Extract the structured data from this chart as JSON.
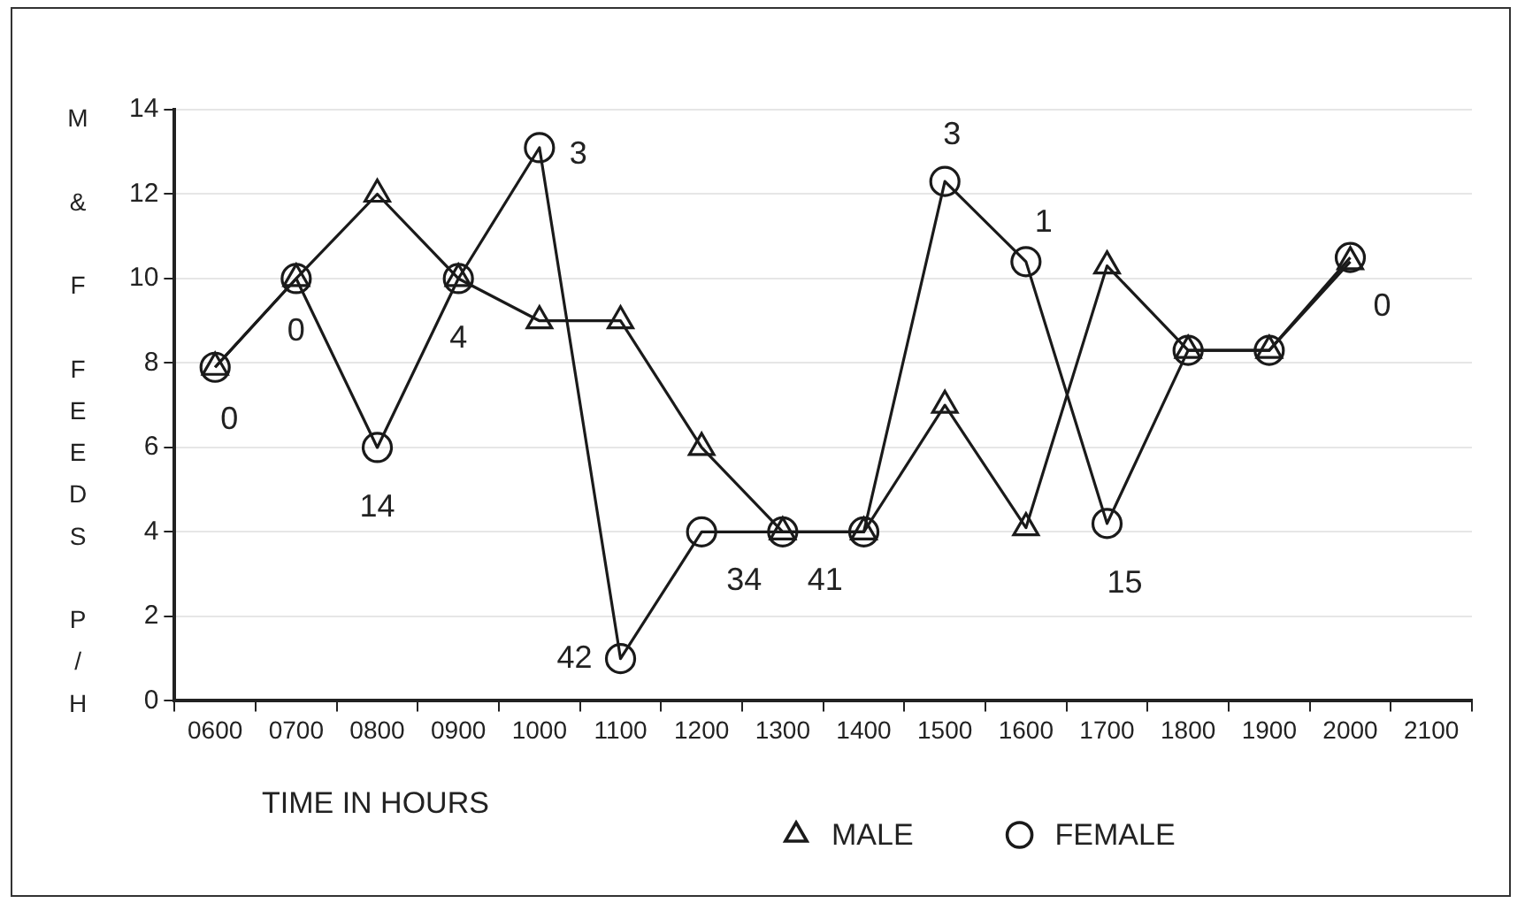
{
  "chart_data": {
    "type": "line",
    "ylabel": "M & F FEEDS P/H",
    "xlabel": "TIME IN HOURS",
    "categories": [
      "0600",
      "0700",
      "0800",
      "0900",
      "1000",
      "1100",
      "1200",
      "1300",
      "1400",
      "1500",
      "1600",
      "1700",
      "1800",
      "1900",
      "2000",
      "2100"
    ],
    "series": [
      {
        "name": "MALE",
        "color": "#1a1a1a",
        "marker": "triangle",
        "values": [
          7.9,
          10,
          12,
          10,
          9,
          9,
          6,
          4,
          4,
          7,
          4.1,
          10.3,
          8.3,
          8.3,
          10.4,
          null
        ]
      },
      {
        "name": "FEMALE",
        "color": "#1a1a1a",
        "marker": "circle",
        "values": [
          7.9,
          10,
          6,
          10,
          13.1,
          1,
          4,
          4,
          4,
          12.3,
          10.4,
          4.2,
          8.3,
          8.3,
          10.5,
          null
        ]
      }
    ],
    "ylim": [
      0,
      14
    ],
    "yticks": [
      0,
      2,
      4,
      6,
      8,
      10,
      12,
      14
    ],
    "grid": "y",
    "legend": "bottom right",
    "line_style": "solid",
    "annotations": [
      {
        "text": "0",
        "x": "0600",
        "y": 7.9
      },
      {
        "text": "0",
        "x": "0700",
        "y": 10
      },
      {
        "text": "14",
        "x": "0800",
        "y": 6
      },
      {
        "text": "4",
        "x": "0900",
        "y": 10
      },
      {
        "text": "3",
        "x": "1000",
        "y": 13.1
      },
      {
        "text": "42",
        "x": "1100",
        "y": 1
      },
      {
        "text": "34",
        "x": "1200",
        "y": 4
      },
      {
        "text": "41",
        "x": "1300",
        "y": 4
      },
      {
        "text": "3",
        "x": "1500",
        "y": 12.3
      },
      {
        "text": "1",
        "x": "1600",
        "y": 10.4
      },
      {
        "text": "15",
        "x": "1700",
        "y": 4.2
      },
      {
        "text": "0",
        "x": "2000",
        "y": 10.5
      }
    ]
  }
}
